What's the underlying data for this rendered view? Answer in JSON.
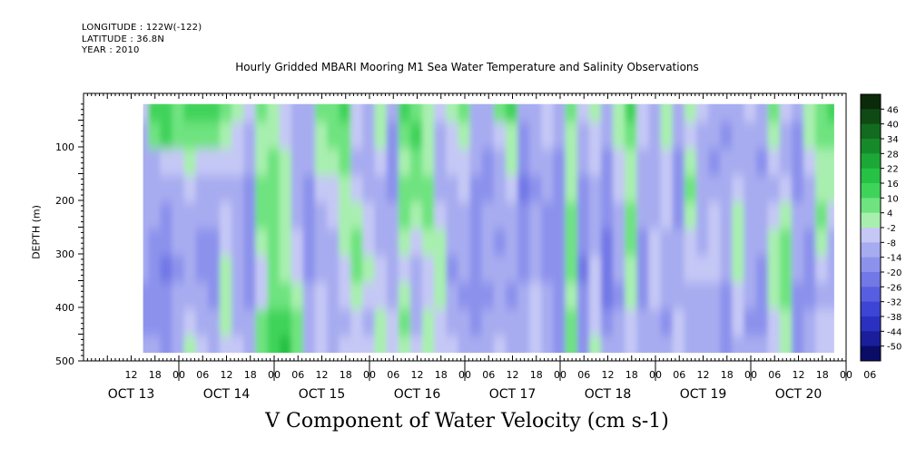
{
  "meta": {
    "longitude": "LONGITUDE : 122W(-122)",
    "latitude": "LATITUDE : 36.8N",
    "year": "YEAR : 2010"
  },
  "chart_data": {
    "type": "heatmap",
    "title": "Hourly Gridded MBARI Mooring M1 Sea Water Temperature and Salinity Observations",
    "xlabel": "V Component of Water Velocity (cm s-1)",
    "ylabel": "DEPTH (m)",
    "x_range_hours": [
      0,
      192
    ],
    "data_extent_hours": [
      15,
      189
    ],
    "y_range_m": [
      500,
      0
    ],
    "y_reversed": true,
    "data_depth_range_m": [
      20,
      485
    ],
    "y_ticks": [
      100,
      200,
      300,
      400,
      500
    ],
    "x_hour_ticks": [
      "12",
      "18",
      "00",
      "06",
      "12",
      "18",
      "00",
      "06",
      "12",
      "18",
      "00",
      "06",
      "12",
      "18",
      "00",
      "06",
      "12",
      "18",
      "00",
      "06",
      "12",
      "18",
      "00",
      "06",
      "12",
      "18",
      "00",
      "06",
      "12",
      "18",
      "00",
      "06"
    ],
    "day_labels": [
      {
        "label": "OCT 13",
        "hour": 0
      },
      {
        "label": "OCT 14",
        "hour": 24
      },
      {
        "label": "OCT 15",
        "hour": 48
      },
      {
        "label": "OCT 16",
        "hour": 72
      },
      {
        "label": "OCT 17",
        "hour": 96
      },
      {
        "label": "OCT 18",
        "hour": 120
      },
      {
        "label": "OCT 19",
        "hour": 144
      },
      {
        "label": "OCT 20",
        "hour": 168
      }
    ],
    "colorbar": {
      "min": -50,
      "max": 50,
      "labels": [
        "46",
        "40",
        "34",
        "28",
        "22",
        "16",
        "10",
        "4",
        "-2",
        "-8",
        "-14",
        "-20",
        "-26",
        "-32",
        "-38",
        "-44",
        "-50"
      ],
      "colors": [
        "#0a2a0a",
        "#0f4a14",
        "#126b1e",
        "#168a2a",
        "#1ca836",
        "#26c245",
        "#3fd35a",
        "#6ee37f",
        "#a8efaf",
        "#c5c8f5",
        "#a7acf0",
        "#8c92ec",
        "#7278e6",
        "#575ee0",
        "#3d45d6",
        "#2a31c0",
        "#1a1e9a",
        "#0a0c66"
      ]
    },
    "columns": [
      {
        "hour": 15,
        "v": [
          -4,
          -6,
          -8,
          -10,
          -10,
          -8,
          -10,
          -12,
          -12,
          -10
        ]
      },
      {
        "hour": 18,
        "v": [
          14,
          8,
          -6,
          -8,
          -10,
          -14,
          -16,
          -16,
          -12,
          -10
        ]
      },
      {
        "hour": 21,
        "v": [
          16,
          12,
          -4,
          -10,
          -12,
          -16,
          -18,
          -16,
          -14,
          -12
        ]
      },
      {
        "hour": 24,
        "v": [
          10,
          6,
          -2,
          -6,
          -8,
          -10,
          -12,
          -10,
          -8,
          -6
        ]
      },
      {
        "hour": 27,
        "v": [
          12,
          8,
          2,
          -4,
          -6,
          -10,
          -8,
          -6,
          -4,
          2
        ]
      },
      {
        "hour": 30,
        "v": [
          16,
          10,
          0,
          -6,
          -8,
          -12,
          -14,
          -10,
          -8,
          -4
        ]
      },
      {
        "hour": 33,
        "v": [
          14,
          10,
          -2,
          -8,
          -10,
          -12,
          -16,
          -14,
          -10,
          -8
        ]
      },
      {
        "hour": 36,
        "v": [
          10,
          2,
          -4,
          -6,
          -4,
          -2,
          2,
          4,
          2,
          -2
        ]
      },
      {
        "hour": 39,
        "v": [
          4,
          0,
          -4,
          -8,
          -10,
          -10,
          -8,
          -6,
          -6,
          -4
        ]
      },
      {
        "hour": 42,
        "v": [
          -4,
          -8,
          -10,
          -12,
          -12,
          -14,
          -16,
          -14,
          -10,
          -8
        ]
      },
      {
        "hour": 45,
        "v": [
          6,
          4,
          2,
          6,
          8,
          2,
          -4,
          -4,
          6,
          10
        ]
      },
      {
        "hour": 48,
        "v": [
          2,
          4,
          6,
          8,
          10,
          8,
          6,
          8,
          14,
          16
        ]
      },
      {
        "hour": 51,
        "v": [
          -4,
          -2,
          2,
          4,
          4,
          2,
          4,
          10,
          16,
          18
        ]
      },
      {
        "hour": 54,
        "v": [
          -8,
          -10,
          -8,
          -6,
          -6,
          -4,
          -2,
          2,
          8,
          10
        ]
      },
      {
        "hour": 57,
        "v": [
          -6,
          -8,
          -10,
          -12,
          -14,
          -16,
          -14,
          -10,
          -8,
          -6
        ]
      },
      {
        "hour": 60,
        "v": [
          6,
          4,
          2,
          -4,
          -6,
          -8,
          -6,
          -4,
          -2,
          0
        ]
      },
      {
        "hour": 63,
        "v": [
          10,
          8,
          4,
          -2,
          -4,
          -6,
          -8,
          -10,
          -8,
          -6
        ]
      },
      {
        "hour": 66,
        "v": [
          14,
          10,
          6,
          4,
          2,
          2,
          0,
          -4,
          -6,
          -4
        ]
      },
      {
        "hour": 69,
        "v": [
          -2,
          -4,
          -6,
          -4,
          2,
          6,
          8,
          4,
          0,
          -2
        ]
      },
      {
        "hour": 72,
        "v": [
          -6,
          -8,
          -10,
          -8,
          -4,
          0,
          2,
          -2,
          -6,
          -4
        ]
      },
      {
        "hour": 75,
        "v": [
          4,
          2,
          -4,
          -6,
          -8,
          -6,
          -4,
          -2,
          2,
          4
        ]
      },
      {
        "hour": 78,
        "v": [
          -8,
          -12,
          -16,
          -14,
          -10,
          -8,
          -8,
          -6,
          -4,
          -2
        ]
      },
      {
        "hour": 81,
        "v": [
          12,
          8,
          2,
          10,
          6,
          2,
          -2,
          2,
          6,
          4
        ]
      },
      {
        "hour": 84,
        "v": [
          10,
          14,
          8,
          6,
          2,
          -4,
          -6,
          -8,
          -6,
          -4
        ]
      },
      {
        "hour": 87,
        "v": [
          4,
          2,
          4,
          8,
          6,
          4,
          -2,
          -4,
          2,
          4
        ]
      },
      {
        "hour": 90,
        "v": [
          -4,
          -8,
          -10,
          -6,
          -2,
          2,
          4,
          2,
          -2,
          -4
        ]
      },
      {
        "hour": 93,
        "v": [
          2,
          -2,
          -4,
          -6,
          -8,
          -10,
          -12,
          -8,
          -6,
          -4
        ]
      },
      {
        "hour": 96,
        "v": [
          6,
          4,
          -2,
          -4,
          -6,
          -8,
          -10,
          -12,
          -10,
          -8
        ]
      },
      {
        "hour": 99,
        "v": [
          -6,
          -8,
          -10,
          -12,
          -14,
          -16,
          -16,
          -14,
          -12,
          -10
        ]
      },
      {
        "hour": 102,
        "v": [
          -8,
          -10,
          -12,
          -14,
          -10,
          -8,
          -10,
          -12,
          -10,
          -8
        ]
      },
      {
        "hour": 105,
        "v": [
          10,
          -2,
          -6,
          -8,
          -10,
          -12,
          -10,
          -8,
          -6,
          -4
        ]
      },
      {
        "hour": 108,
        "v": [
          12,
          4,
          2,
          -4,
          -6,
          -8,
          -10,
          -12,
          -10,
          -8
        ]
      },
      {
        "hour": 111,
        "v": [
          -10,
          -14,
          -16,
          -18,
          -16,
          -14,
          -12,
          -10,
          -8,
          -6
        ]
      },
      {
        "hour": 114,
        "v": [
          -6,
          -8,
          -10,
          -12,
          -10,
          -8,
          -6,
          -4,
          -2,
          -4
        ]
      },
      {
        "hour": 117,
        "v": [
          -2,
          -4,
          -8,
          -10,
          -12,
          -14,
          -12,
          -10,
          -8,
          -6
        ]
      },
      {
        "hour": 120,
        "v": [
          -6,
          -10,
          -14,
          -16,
          -16,
          -14,
          -12,
          -14,
          -16,
          -14
        ]
      },
      {
        "hour": 123,
        "v": [
          8,
          4,
          2,
          4,
          6,
          8,
          6,
          4,
          8,
          10
        ]
      },
      {
        "hour": 126,
        "v": [
          -4,
          -8,
          -10,
          -12,
          -14,
          -16,
          -18,
          -16,
          -14,
          -12
        ]
      },
      {
        "hour": 129,
        "v": [
          2,
          -2,
          -4,
          -6,
          -8,
          -6,
          -4,
          -2,
          0,
          2
        ]
      },
      {
        "hour": 132,
        "v": [
          -6,
          -10,
          -12,
          -14,
          -16,
          -18,
          -20,
          -18,
          -14,
          -10
        ]
      },
      {
        "hour": 135,
        "v": [
          4,
          2,
          -2,
          -4,
          -6,
          -8,
          -10,
          -12,
          -10,
          -8
        ]
      },
      {
        "hour": 138,
        "v": [
          12,
          8,
          4,
          2,
          6,
          8,
          4,
          2,
          -2,
          -4
        ]
      },
      {
        "hour": 141,
        "v": [
          -2,
          -4,
          -6,
          -8,
          -10,
          -12,
          -14,
          -12,
          -10,
          -8
        ]
      },
      {
        "hour": 144,
        "v": [
          -6,
          -8,
          -10,
          -8,
          -6,
          -4,
          -2,
          -4,
          -6,
          -8
        ]
      },
      {
        "hour": 147,
        "v": [
          4,
          2,
          0,
          -2,
          -4,
          -6,
          -8,
          -10,
          -12,
          -10
        ]
      },
      {
        "hour": 150,
        "v": [
          -8,
          -10,
          -12,
          -14,
          -12,
          -10,
          -8,
          -6,
          -4,
          -2
        ]
      },
      {
        "hour": 153,
        "v": [
          2,
          -2,
          4,
          6,
          2,
          -2,
          -4,
          -6,
          -8,
          -6
        ]
      },
      {
        "hour": 156,
        "v": [
          -4,
          -6,
          -8,
          -10,
          -8,
          -6,
          -4,
          -6,
          -8,
          -10
        ]
      },
      {
        "hour": 159,
        "v": [
          -8,
          -10,
          -12,
          -8,
          -4,
          -2,
          -4,
          -6,
          -8,
          -10
        ]
      },
      {
        "hour": 162,
        "v": [
          -10,
          -12,
          -10,
          -8,
          -6,
          -8,
          -10,
          -12,
          -14,
          -12
        ]
      },
      {
        "hour": 165,
        "v": [
          -6,
          -8,
          -6,
          -4,
          2,
          4,
          2,
          -2,
          -4,
          -6
        ]
      },
      {
        "hour": 168,
        "v": [
          -4,
          -6,
          -8,
          -10,
          -8,
          -6,
          -8,
          -10,
          -12,
          -10
        ]
      },
      {
        "hour": 171,
        "v": [
          -8,
          -10,
          -12,
          -10,
          -8,
          -10,
          -12,
          -14,
          -12,
          -10
        ]
      },
      {
        "hour": 174,
        "v": [
          8,
          4,
          -2,
          -6,
          -4,
          2,
          4,
          2,
          -2,
          -4
        ]
      },
      {
        "hour": 177,
        "v": [
          -4,
          -8,
          -6,
          -2,
          4,
          6,
          8,
          6,
          4,
          2
        ]
      },
      {
        "hour": 180,
        "v": [
          -10,
          -12,
          -14,
          -12,
          -10,
          -8,
          -10,
          -12,
          -14,
          -12
        ]
      },
      {
        "hour": 183,
        "v": [
          4,
          2,
          -4,
          -8,
          -10,
          -12,
          -14,
          -12,
          -10,
          -8
        ]
      },
      {
        "hour": 186,
        "v": [
          10,
          6,
          2,
          4,
          6,
          2,
          -4,
          -6,
          -4,
          -2
        ]
      },
      {
        "hour": 189,
        "v": [
          12,
          8,
          4,
          2,
          -2,
          -6,
          -8,
          -6,
          -4,
          -2
        ]
      }
    ],
    "column_depths_m": [
      30,
      80,
      130,
      180,
      230,
      280,
      330,
      380,
      430,
      480
    ]
  }
}
